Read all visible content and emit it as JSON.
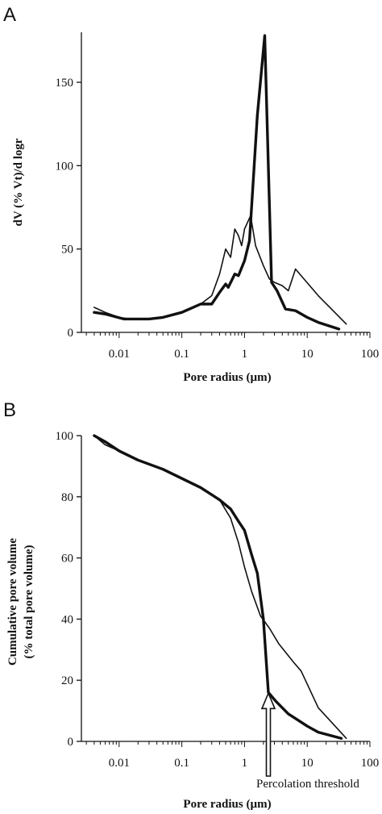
{
  "chart_data": [
    {
      "panel": "A",
      "type": "line",
      "xlabel": "Pore radius (µm)",
      "ylabel": "dV (% Vt)/d logr",
      "xscale": "log",
      "xlim": [
        0.0025,
        100
      ],
      "ylim": [
        0,
        180
      ],
      "xticks": [
        {
          "value": 0.01,
          "label": "0.01"
        },
        {
          "value": 0.1,
          "label": "0.1"
        },
        {
          "value": 1,
          "label": "1"
        },
        {
          "value": 10,
          "label": "10"
        },
        {
          "value": 100,
          "label": "100"
        }
      ],
      "yticks": [
        {
          "value": 0,
          "label": "0"
        },
        {
          "value": 50,
          "label": "50"
        },
        {
          "value": 100,
          "label": "100"
        },
        {
          "value": 150,
          "label": "150"
        }
      ],
      "grid": false,
      "series": [
        {
          "style": "thin",
          "points": [
            [
              0.004,
              15
            ],
            [
              0.006,
              12
            ],
            [
              0.01,
              9
            ],
            [
              0.015,
              8
            ],
            [
              0.03,
              8
            ],
            [
              0.05,
              9
            ],
            [
              0.1,
              12
            ],
            [
              0.2,
              17
            ],
            [
              0.3,
              22
            ],
            [
              0.4,
              35
            ],
            [
              0.5,
              50
            ],
            [
              0.6,
              45
            ],
            [
              0.7,
              62
            ],
            [
              0.8,
              58
            ],
            [
              0.9,
              52
            ],
            [
              1.0,
              62
            ],
            [
              1.25,
              70
            ],
            [
              1.5,
              52
            ],
            [
              2.0,
              40
            ],
            [
              2.5,
              32
            ],
            [
              3.0,
              30
            ],
            [
              4.0,
              28
            ],
            [
              5.0,
              25
            ],
            [
              6.5,
              38
            ],
            [
              8.0,
              34
            ],
            [
              15,
              22
            ],
            [
              42,
              5
            ]
          ]
        },
        {
          "style": "thick",
          "points": [
            [
              0.004,
              12
            ],
            [
              0.006,
              11
            ],
            [
              0.012,
              8
            ],
            [
              0.03,
              8
            ],
            [
              0.05,
              9
            ],
            [
              0.1,
              12
            ],
            [
              0.2,
              17
            ],
            [
              0.3,
              17
            ],
            [
              0.4,
              24
            ],
            [
              0.5,
              29
            ],
            [
              0.55,
              27
            ],
            [
              0.7,
              35
            ],
            [
              0.8,
              34
            ],
            [
              1.0,
              43
            ],
            [
              1.2,
              55
            ],
            [
              1.6,
              130
            ],
            [
              2.1,
              178
            ],
            [
              2.7,
              30
            ],
            [
              3.3,
              25
            ],
            [
              4.5,
              14
            ],
            [
              6.5,
              13
            ],
            [
              10,
              9
            ],
            [
              15,
              6
            ],
            [
              32,
              2
            ]
          ]
        }
      ]
    },
    {
      "panel": "B",
      "type": "line",
      "xlabel": "Pore radius (µm)",
      "ylabel": "Cumulative pore volume",
      "ylabel2": "(% total pore volume)",
      "xscale": "log",
      "xlim": [
        0.0025,
        100
      ],
      "ylim": [
        0,
        100
      ],
      "xticks": [
        {
          "value": 0.01,
          "label": "0.01"
        },
        {
          "value": 0.1,
          "label": "0.1"
        },
        {
          "value": 1,
          "label": "1"
        },
        {
          "value": 10,
          "label": "10"
        },
        {
          "value": 100,
          "label": "100"
        }
      ],
      "yticks": [
        {
          "value": 0,
          "label": "0"
        },
        {
          "value": 20,
          "label": "20"
        },
        {
          "value": 40,
          "label": "40"
        },
        {
          "value": 60,
          "label": "60"
        },
        {
          "value": 80,
          "label": "80"
        },
        {
          "value": 100,
          "label": "100"
        }
      ],
      "grid": false,
      "annotation": {
        "text": "Percolation threshold",
        "x": 2.4,
        "y": 16
      },
      "series": [
        {
          "style": "thin",
          "points": [
            [
              0.004,
              100
            ],
            [
              0.006,
              97
            ],
            [
              0.01,
              95
            ],
            [
              0.02,
              92
            ],
            [
              0.05,
              89
            ],
            [
              0.1,
              86
            ],
            [
              0.2,
              83
            ],
            [
              0.4,
              79
            ],
            [
              0.6,
              73
            ],
            [
              0.8,
              65
            ],
            [
              1.0,
              57
            ],
            [
              1.3,
              49
            ],
            [
              1.8,
              41
            ],
            [
              2.5,
              37
            ],
            [
              3.5,
              32
            ],
            [
              6,
              26
            ],
            [
              8,
              23
            ],
            [
              15,
              11
            ],
            [
              42,
              1
            ]
          ]
        },
        {
          "style": "thick",
          "points": [
            [
              0.004,
              100
            ],
            [
              0.006,
              98
            ],
            [
              0.01,
              95
            ],
            [
              0.02,
              92
            ],
            [
              0.05,
              89
            ],
            [
              0.1,
              86
            ],
            [
              0.2,
              83
            ],
            [
              0.4,
              79
            ],
            [
              0.6,
              76
            ],
            [
              0.8,
              72
            ],
            [
              1.0,
              69
            ],
            [
              1.3,
              61
            ],
            [
              1.6,
              55
            ],
            [
              2.0,
              40
            ],
            [
              2.4,
              16
            ],
            [
              3.2,
              13
            ],
            [
              5.0,
              9
            ],
            [
              10,
              5
            ],
            [
              15,
              3
            ],
            [
              35,
              1
            ]
          ]
        }
      ]
    }
  ]
}
